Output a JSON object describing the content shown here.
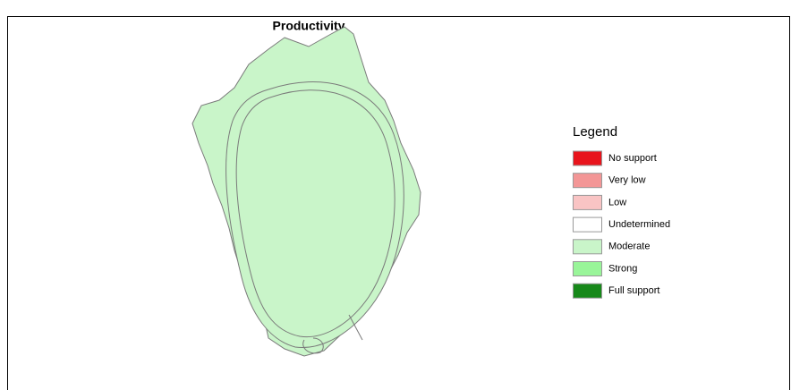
{
  "title": "Productivity",
  "legend": {
    "title": "Legend",
    "items": [
      {
        "label": "No support",
        "color": "#e8141c"
      },
      {
        "label": "Very low",
        "color": "#f39696"
      },
      {
        "label": "Low",
        "color": "#f9c4c4"
      },
      {
        "label": "Undetermined",
        "color": "#ffffff"
      },
      {
        "label": "Moderate",
        "color": "#c9f5c9"
      },
      {
        "label": "Strong",
        "color": "#99f599"
      },
      {
        "label": "Full support",
        "color": "#17891a"
      }
    ]
  }
}
